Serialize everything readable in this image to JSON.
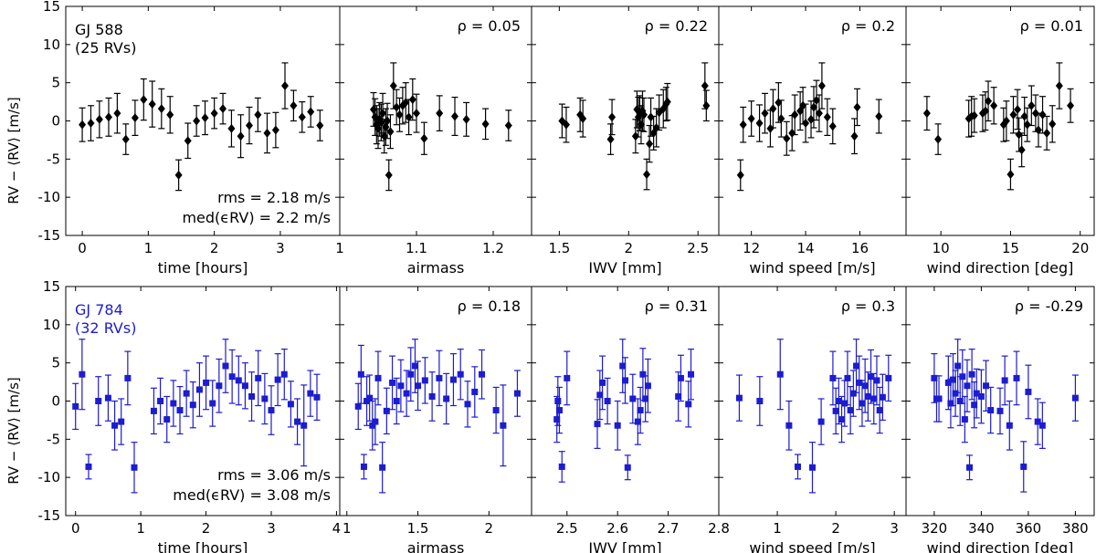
{
  "ylabel": "RV − ⟨RV⟩ [m/s]",
  "colors": {
    "row0": "#000000",
    "row1": "#1c1cd0"
  },
  "chart_data": [
    {
      "type": "scatter",
      "star": "GJ 588",
      "count_label": "(25 RVs)",
      "marker": "diamond",
      "rms_text": "rms = 2.18 m/s",
      "med_text": "med(ϵRV) = 2.2 m/s",
      "ylim": [
        -15,
        15
      ],
      "yticks": [
        -15,
        -10,
        -5,
        0,
        5,
        10,
        15
      ],
      "panels": [
        {
          "xlabel": "time [hours]",
          "xlim": [
            -0.25,
            3.9
          ],
          "xticks": [
            0,
            1,
            2,
            3
          ],
          "rho": "",
          "x": [
            0.0,
            0.13,
            0.26,
            0.4,
            0.53,
            0.66,
            0.8,
            0.93,
            1.06,
            1.2,
            1.33,
            1.46,
            1.6,
            1.73,
            1.86,
            2.0,
            2.13,
            2.26,
            2.4,
            2.53,
            2.66,
            2.8,
            2.93,
            3.07,
            3.2,
            3.33,
            3.46,
            3.6
          ],
          "y": [
            -0.5,
            -0.3,
            0.2,
            0.5,
            1.0,
            -2.4,
            0.4,
            2.8,
            2.2,
            1.6,
            0.8,
            -7.1,
            -2.6,
            0.0,
            0.4,
            1.0,
            1.6,
            -1.0,
            -2.0,
            -0.6,
            0.8,
            -1.6,
            -1.2,
            4.6,
            2.0,
            0.5,
            1.2,
            -0.6
          ],
          "err": [
            2.2,
            2.3,
            2.4,
            2.5,
            2.6,
            2.0,
            2.3,
            2.7,
            3.0,
            2.6,
            2.4,
            2.0,
            2.3,
            2.0,
            2.2,
            2.0,
            2.0,
            2.4,
            2.8,
            2.4,
            2.2,
            2.6,
            2.3,
            3.0,
            2.0,
            2.0,
            2.0,
            2.0
          ]
        },
        {
          "xlabel": "airmass",
          "xlim": [
            1.0,
            1.25
          ],
          "xticks": [
            1.0,
            1.1,
            1.2
          ],
          "rho": "ρ = 0.05",
          "x": [
            1.044,
            1.046,
            1.048,
            1.05,
            1.052,
            1.054,
            1.056,
            1.058,
            1.06,
            1.062,
            1.064,
            1.066,
            1.07,
            1.074,
            1.078,
            1.082,
            1.086,
            1.09,
            1.095,
            1.1,
            1.11,
            1.13,
            1.15,
            1.165,
            1.19,
            1.22
          ],
          "y": [
            1.5,
            0.5,
            -0.5,
            -1.0,
            0.2,
            -0.2,
            1.0,
            -2.0,
            -0.8,
            0.0,
            -7.1,
            -1.4,
            4.6,
            1.8,
            0.8,
            2.0,
            2.4,
            0.5,
            2.8,
            1.0,
            -2.3,
            1.0,
            0.6,
            0.2,
            -0.4,
            -0.6
          ],
          "err": [
            2.2,
            2.4,
            2.5,
            2.6,
            2.2,
            2.4,
            2.6,
            2.2,
            2.4,
            2.3,
            2.0,
            2.2,
            3.0,
            2.3,
            2.2,
            2.4,
            2.6,
            2.3,
            2.7,
            2.5,
            2.1,
            2.3,
            2.5,
            2.2,
            2.0,
            2.0
          ]
        },
        {
          "xlabel": "IWV [mm]",
          "xlim": [
            1.3,
            2.65
          ],
          "xticks": [
            1.5,
            2.0,
            2.5
          ],
          "rho": "ρ = 0.22",
          "x": [
            1.52,
            1.55,
            1.65,
            1.67,
            1.87,
            1.88,
            2.05,
            2.06,
            2.07,
            2.08,
            2.09,
            2.1,
            2.11,
            2.13,
            2.15,
            2.16,
            2.18,
            2.2,
            2.22,
            2.25,
            2.27,
            2.28,
            2.55,
            2.56
          ],
          "y": [
            0.0,
            -0.5,
            0.8,
            0.3,
            -2.4,
            0.5,
            -2.0,
            1.5,
            0.5,
            1.0,
            -0.5,
            1.3,
            0.8,
            -7.0,
            -3.0,
            0.5,
            -1.6,
            -0.9,
            1.1,
            1.6,
            2.2,
            2.5,
            4.6,
            2.0
          ],
          "err": [
            2.2,
            2.3,
            2.2,
            2.4,
            2.0,
            2.3,
            2.2,
            2.4,
            2.6,
            2.3,
            2.5,
            2.6,
            2.2,
            2.0,
            2.4,
            2.5,
            2.2,
            2.5,
            2.3,
            2.5,
            2.2,
            2.4,
            3.0,
            2.0
          ]
        },
        {
          "xlabel": "wind speed [m/s]",
          "xlim": [
            10.8,
            17.7
          ],
          "xticks": [
            12,
            14,
            16
          ],
          "rho": "ρ = 0.2",
          "x": [
            11.6,
            11.7,
            12.0,
            12.3,
            12.5,
            12.7,
            12.8,
            13.0,
            13.1,
            13.3,
            13.5,
            13.6,
            13.8,
            13.9,
            14.0,
            14.2,
            14.3,
            14.4,
            14.5,
            14.6,
            14.8,
            15.0,
            15.8,
            15.9,
            16.7
          ],
          "y": [
            -7.1,
            -0.5,
            0.3,
            -0.3,
            1.0,
            -1.0,
            1.6,
            2.4,
            0.3,
            -2.3,
            -1.6,
            0.8,
            1.3,
            2.0,
            -0.3,
            0.2,
            1.8,
            2.7,
            1.0,
            4.6,
            0.5,
            -0.7,
            -2.0,
            1.8,
            0.6
          ],
          "err": [
            2.0,
            2.3,
            2.3,
            2.4,
            2.6,
            2.4,
            2.5,
            2.6,
            2.4,
            2.2,
            2.3,
            2.6,
            2.5,
            2.4,
            2.5,
            2.4,
            2.7,
            2.6,
            2.4,
            3.0,
            2.4,
            2.3,
            2.3,
            2.4,
            2.2
          ]
        },
        {
          "xlabel": "wind direction [deg]",
          "xlim": [
            7.5,
            21.0
          ],
          "xticks": [
            10,
            15,
            20
          ],
          "rho": "ρ = 0.01",
          "x": [
            9.0,
            9.8,
            12.0,
            12.2,
            12.4,
            13.0,
            13.2,
            13.4,
            13.8,
            14.5,
            14.7,
            15.0,
            15.2,
            15.5,
            15.6,
            15.8,
            16.0,
            16.2,
            16.5,
            16.8,
            17.0,
            17.3,
            17.6,
            18.0,
            18.5,
            19.3
          ],
          "y": [
            1.0,
            -2.4,
            0.3,
            0.6,
            0.7,
            1.0,
            1.3,
            2.6,
            2.0,
            -0.5,
            0.0,
            -7.0,
            0.8,
            1.5,
            -1.8,
            -3.8,
            0.6,
            -0.5,
            2.0,
            1.0,
            -1.2,
            0.8,
            -1.6,
            -0.4,
            4.6,
            2.0
          ],
          "err": [
            2.2,
            2.0,
            2.4,
            2.6,
            2.2,
            2.4,
            2.5,
            2.6,
            2.4,
            2.2,
            2.6,
            2.0,
            2.4,
            2.6,
            2.2,
            2.2,
            2.5,
            2.2,
            2.6,
            2.4,
            2.2,
            2.4,
            2.2,
            2.4,
            3.0,
            2.2
          ]
        }
      ]
    },
    {
      "type": "scatter",
      "star": "GJ 784",
      "count_label": "(32 RVs)",
      "marker": "square",
      "rms_text": "rms = 3.06 m/s",
      "med_text": "med(ϵRV) = 3.08 m/s",
      "ylim": [
        -15,
        15
      ],
      "yticks": [
        -15,
        -10,
        -5,
        0,
        5,
        10,
        15
      ],
      "panels": [
        {
          "xlabel": "time [hours]",
          "xlim": [
            -0.15,
            4.05
          ],
          "xticks": [
            0,
            1,
            2,
            3,
            4
          ],
          "rho": "",
          "x": [
            0.0,
            0.1,
            0.2,
            0.35,
            0.5,
            0.6,
            0.7,
            0.8,
            0.9,
            1.2,
            1.3,
            1.4,
            1.5,
            1.6,
            1.7,
            1.8,
            1.9,
            2.0,
            2.1,
            2.2,
            2.3,
            2.4,
            2.5,
            2.6,
            2.7,
            2.8,
            2.9,
            3.0,
            3.1,
            3.2,
            3.3,
            3.4,
            3.5,
            3.6,
            3.7
          ],
          "y": [
            -0.7,
            3.5,
            -8.6,
            0.0,
            0.4,
            -3.2,
            -2.7,
            3.0,
            -8.7,
            -1.3,
            0.0,
            -2.4,
            -0.3,
            -1.2,
            1.0,
            -0.5,
            1.5,
            2.4,
            -0.3,
            2.0,
            4.6,
            3.2,
            2.7,
            2.0,
            0.6,
            3.0,
            0.3,
            -1.2,
            2.8,
            3.5,
            -0.4,
            -2.7,
            -3.2,
            1.0,
            0.5
          ],
          "err": [
            3.0,
            4.6,
            1.6,
            3.2,
            3.0,
            3.2,
            3.0,
            3.5,
            3.3,
            3.0,
            3.0,
            3.0,
            3.0,
            3.1,
            3.0,
            3.0,
            3.5,
            3.5,
            3.0,
            3.5,
            3.5,
            3.5,
            3.2,
            3.0,
            3.2,
            3.6,
            3.3,
            3.2,
            3.4,
            3.3,
            3.0,
            3.0,
            5.3,
            3.0,
            3.0
          ]
        },
        {
          "xlabel": "airmass",
          "xlim": [
            0.95,
            2.3
          ],
          "xticks": [
            1.0,
            1.5,
            2.0
          ],
          "rho": "ρ = 0.18",
          "x": [
            1.08,
            1.1,
            1.12,
            1.14,
            1.16,
            1.18,
            1.2,
            1.22,
            1.25,
            1.28,
            1.32,
            1.35,
            1.38,
            1.42,
            1.45,
            1.48,
            1.5,
            1.55,
            1.6,
            1.65,
            1.7,
            1.75,
            1.8,
            1.85,
            1.9,
            1.95,
            2.05,
            2.1,
            2.2
          ],
          "y": [
            -0.7,
            3.5,
            -8.6,
            0.0,
            0.4,
            -3.2,
            -2.7,
            3.0,
            -8.7,
            -1.3,
            2.4,
            0.0,
            2.0,
            1.0,
            3.5,
            4.6,
            2.0,
            2.7,
            0.6,
            3.0,
            0.3,
            2.8,
            3.5,
            -0.4,
            1.2,
            3.5,
            -1.2,
            -3.2,
            1.0
          ],
          "err": [
            3.0,
            3.8,
            1.6,
            3.2,
            3.0,
            3.2,
            3.0,
            3.5,
            3.3,
            3.0,
            3.5,
            3.0,
            3.4,
            3.0,
            3.5,
            3.5,
            3.2,
            3.0,
            3.2,
            3.6,
            3.3,
            3.4,
            3.3,
            3.0,
            3.3,
            3.2,
            3.0,
            5.3,
            3.0
          ]
        },
        {
          "xlabel": "IWV [mm]",
          "xlim": [
            2.43,
            2.8
          ],
          "xticks": [
            2.5,
            2.6,
            2.7,
            2.8
          ],
          "rho": "ρ = 0.31",
          "x": [
            2.48,
            2.482,
            2.485,
            2.49,
            2.5,
            2.56,
            2.565,
            2.57,
            2.58,
            2.6,
            2.61,
            2.615,
            2.62,
            2.63,
            2.64,
            2.645,
            2.65,
            2.655,
            2.66,
            2.72,
            2.725,
            2.74,
            2.745
          ],
          "y": [
            -2.4,
            0.0,
            -1.2,
            -8.6,
            3.0,
            -3.0,
            0.8,
            2.4,
            0.0,
            -3.2,
            4.6,
            2.7,
            -8.7,
            0.3,
            -2.7,
            -1.2,
            3.5,
            0.3,
            2.0,
            0.6,
            3.0,
            -0.4,
            3.5
          ],
          "err": [
            3.0,
            3.2,
            3.0,
            2.0,
            3.5,
            3.2,
            3.2,
            3.5,
            3.0,
            3.2,
            3.5,
            3.0,
            1.6,
            3.2,
            3.0,
            3.0,
            3.4,
            3.0,
            3.5,
            3.2,
            3.0,
            3.0,
            3.3
          ]
        },
        {
          "xlabel": "wind speed [m/s]",
          "xlim": [
            0.0,
            3.2
          ],
          "xticks": [
            1,
            2,
            3
          ],
          "rho": "ρ = 0.3",
          "x": [
            0.35,
            0.7,
            1.05,
            1.2,
            1.35,
            1.6,
            1.75,
            1.95,
            2.0,
            2.05,
            2.1,
            2.15,
            2.2,
            2.25,
            2.3,
            2.35,
            2.4,
            2.45,
            2.5,
            2.55,
            2.6,
            2.65,
            2.7,
            2.75,
            2.8,
            2.9
          ],
          "y": [
            0.4,
            0.0,
            3.5,
            -3.2,
            -8.6,
            -8.7,
            -2.7,
            3.0,
            -1.3,
            0.0,
            -2.4,
            -0.3,
            3.0,
            -1.2,
            1.0,
            4.6,
            2.4,
            -0.3,
            2.0,
            0.6,
            3.2,
            0.3,
            2.7,
            -1.2,
            0.5,
            3.0
          ],
          "err": [
            3.0,
            3.2,
            4.6,
            3.2,
            1.6,
            3.3,
            3.0,
            3.5,
            3.0,
            3.0,
            3.0,
            3.0,
            3.5,
            3.1,
            3.0,
            3.5,
            3.5,
            3.0,
            3.5,
            3.2,
            3.5,
            3.3,
            3.2,
            3.0,
            3.0,
            3.0
          ]
        },
        {
          "xlabel": "wind direction [deg]",
          "xlim": [
            308,
            388
          ],
          "xticks": [
            320,
            340,
            360,
            380
          ],
          "rho": "ρ = -0.29",
          "x": [
            320,
            321,
            322,
            326,
            327,
            328,
            329,
            330,
            331,
            332,
            333,
            334,
            335,
            336,
            337,
            338,
            340,
            342,
            344,
            348,
            350,
            352,
            355,
            358,
            360,
            364,
            366,
            380
          ],
          "y": [
            3.0,
            0.3,
            0.3,
            2.4,
            -0.3,
            2.8,
            1.0,
            4.6,
            0.0,
            3.2,
            -2.4,
            2.0,
            -8.7,
            3.5,
            -0.5,
            1.0,
            0.6,
            2.0,
            -1.2,
            -1.3,
            2.7,
            -3.2,
            3.0,
            -8.6,
            1.2,
            -2.7,
            -3.2,
            0.4
          ],
          "err": [
            3.2,
            3.0,
            3.0,
            3.5,
            3.2,
            3.4,
            3.0,
            3.5,
            3.2,
            3.5,
            3.0,
            3.4,
            1.6,
            3.3,
            3.0,
            3.2,
            3.5,
            3.3,
            3.0,
            3.0,
            3.2,
            3.2,
            3.5,
            3.3,
            3.5,
            3.0,
            3.0,
            3.0
          ]
        }
      ]
    }
  ]
}
